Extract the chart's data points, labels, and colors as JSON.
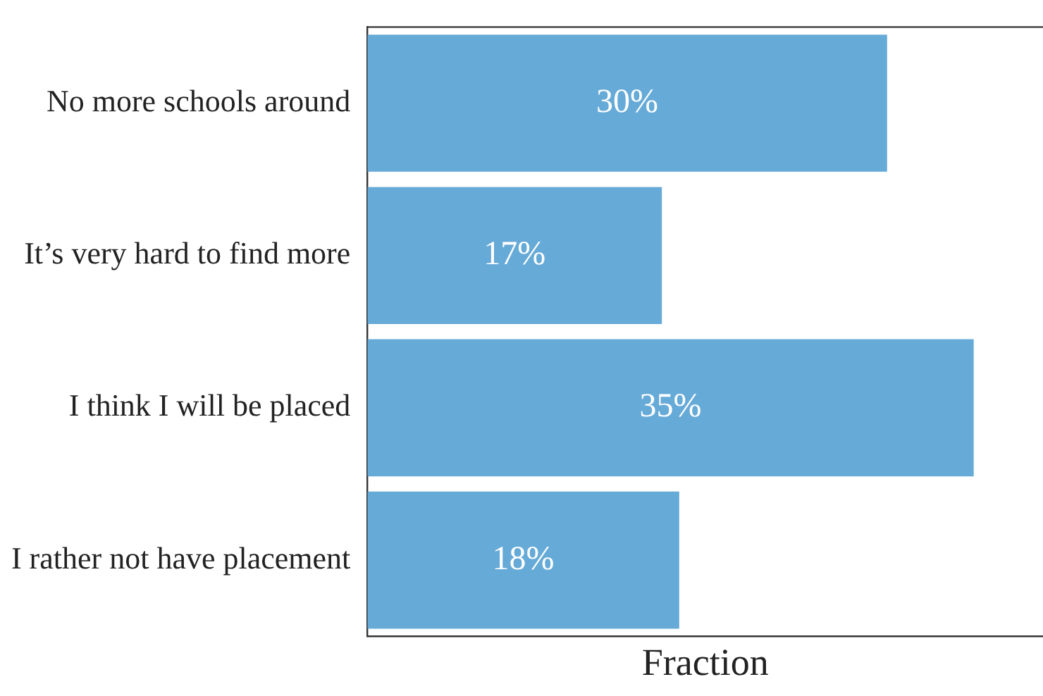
{
  "chart_data": {
    "type": "bar",
    "orientation": "horizontal",
    "xlabel": "Fraction",
    "categories": [
      "No more schools around",
      "It’s very hard to find more",
      "I think I will be placed",
      "I rather not have placement"
    ],
    "values": [
      30,
      17,
      35,
      18
    ],
    "value_labels": [
      "30%",
      "17%",
      "35%",
      "18%"
    ],
    "color": "#66aad8",
    "xlim": [
      0,
      39
    ],
    "tick_labels": "y",
    "grid": false,
    "legend": false
  }
}
